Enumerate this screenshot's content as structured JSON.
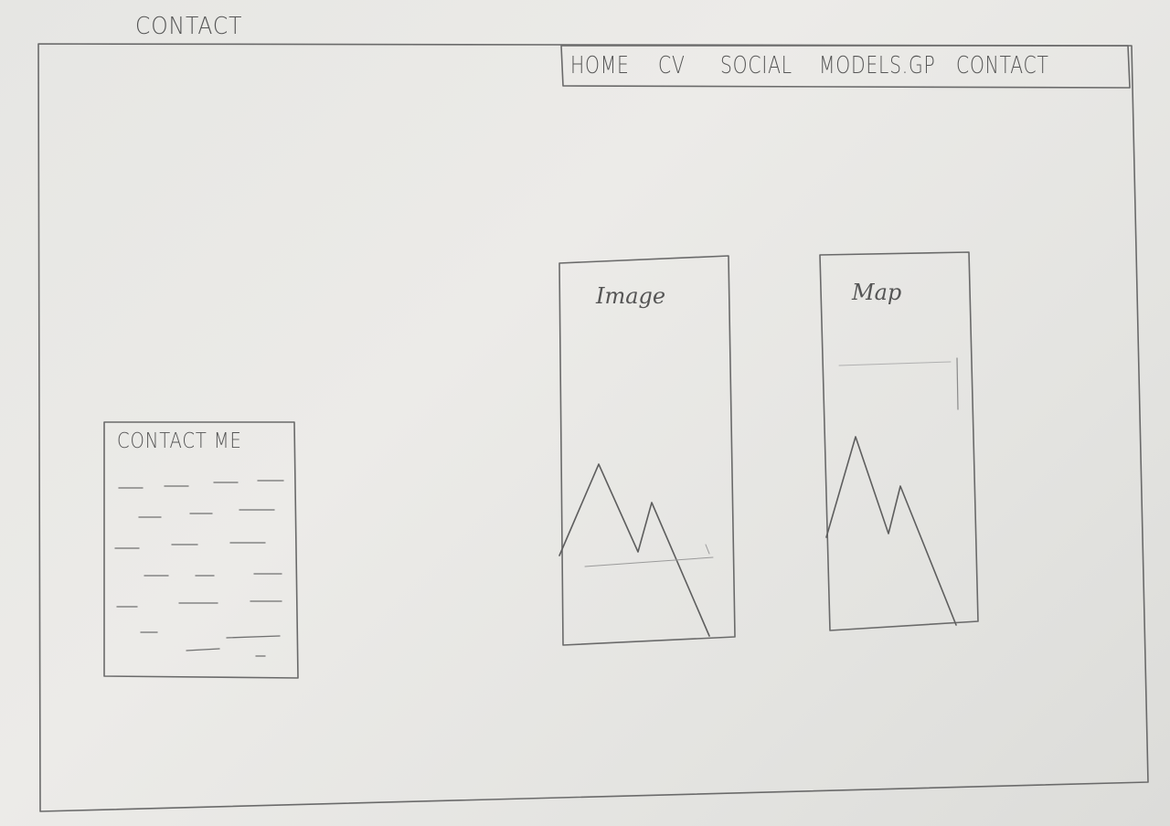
{
  "page_label": "CONTACT",
  "nav": {
    "items": [
      {
        "label": "HOME"
      },
      {
        "label": "CV"
      },
      {
        "label": "SOCIAL"
      },
      {
        "label": "MODELS.GP"
      },
      {
        "label": "CONTACT"
      }
    ]
  },
  "contact_form": {
    "heading": "CONTACT ME"
  },
  "image_card": {
    "label": "Image"
  },
  "map_card": {
    "label": "Map"
  }
}
